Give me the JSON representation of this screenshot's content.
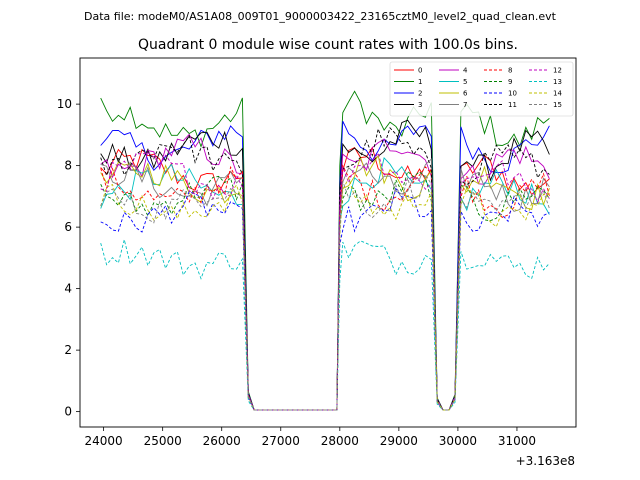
{
  "chart_data": {
    "type": "line",
    "suptitle": "Data file: modeM0/AS1A08_009T01_9000003422_23165cztM0_level2_quad_clean.evt",
    "title": "Quadrant 0 module wise count rates with 100.0s bins.",
    "xlabel": "",
    "ylabel": "",
    "x_offset_label": "+3.163e8",
    "xlim": [
      23600,
      32000
    ],
    "ylim": [
      -0.5,
      11.5
    ],
    "xticks": [
      24000,
      25000,
      26000,
      27000,
      28000,
      29000,
      30000,
      31000
    ],
    "xtick_labels": [
      "24000",
      "25000",
      "26000",
      "27000",
      "28000",
      "29000",
      "30000",
      "31000"
    ],
    "yticks": [
      0,
      2,
      4,
      6,
      8,
      10
    ],
    "ytick_labels": [
      "0",
      "2",
      "4",
      "6",
      "8",
      "10"
    ],
    "grid": false,
    "legend_position": "top-right",
    "legend_columns": 4,
    "segments": [
      {
        "start": 23950,
        "end": 26350
      },
      {
        "start": 28050,
        "end": 29550
      },
      {
        "start": 30050,
        "end": 31550
      }
    ],
    "gaps": [
      {
        "from": 26350,
        "to": 26550,
        "end_values": [
          0.7,
          0.05
        ]
      },
      {
        "from": 29550,
        "to": 29750,
        "end_values": [
          0.6,
          0.05
        ]
      },
      {
        "from": 29850,
        "to": 30050,
        "end_values": [
          0.05,
          0.6
        ]
      }
    ],
    "zero_spans": [
      [
        26550,
        27950
      ],
      [
        29750,
        29850
      ]
    ],
    "series": [
      {
        "name": "0",
        "color": "#ff0000",
        "style": "solid",
        "level": 7.8
      },
      {
        "name": "1",
        "color": "#008000",
        "style": "solid",
        "level": 9.4
      },
      {
        "name": "2",
        "color": "#0000ff",
        "style": "solid",
        "level": 8.7
      },
      {
        "name": "3",
        "color": "#000000",
        "style": "solid",
        "level": 8.5
      },
      {
        "name": "4",
        "color": "#bf00bf",
        "style": "solid",
        "level": 8.2
      },
      {
        "name": "5",
        "color": "#00bfbf",
        "style": "solid",
        "level": 7.3
      },
      {
        "name": "6",
        "color": "#bfbf00",
        "style": "solid",
        "level": 7.5
      },
      {
        "name": "7",
        "color": "#808080",
        "style": "solid",
        "level": 7.4
      },
      {
        "name": "8",
        "color": "#ff0000",
        "style": "dashed",
        "level": 7.2
      },
      {
        "name": "9",
        "color": "#008000",
        "style": "dashed",
        "level": 7.0
      },
      {
        "name": "10",
        "color": "#0000ff",
        "style": "dashed",
        "level": 6.4
      },
      {
        "name": "11",
        "color": "#000000",
        "style": "dashed",
        "level": 8.3
      },
      {
        "name": "12",
        "color": "#bf00bf",
        "style": "dashed",
        "level": 7.7
      },
      {
        "name": "13",
        "color": "#00bfbf",
        "style": "dashed",
        "level": 5.0
      },
      {
        "name": "14",
        "color": "#bfbf00",
        "style": "dashed",
        "level": 6.7
      },
      {
        "name": "15",
        "color": "#808080",
        "style": "dashed",
        "level": 6.9
      }
    ]
  }
}
